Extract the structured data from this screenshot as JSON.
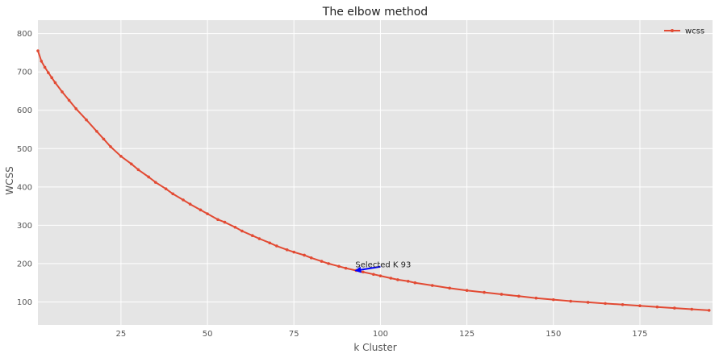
{
  "chart_data": {
    "type": "line",
    "title": "The elbow method",
    "xlabel": "k Cluster",
    "ylabel": "WCSS",
    "xlim": [
      1,
      196
    ],
    "ylim": [
      40,
      835
    ],
    "xticks": [
      25,
      50,
      75,
      100,
      125,
      150,
      175
    ],
    "yticks": [
      100,
      200,
      300,
      400,
      500,
      600,
      700,
      800
    ],
    "grid": true,
    "legend_position": "top-right",
    "series": [
      {
        "name": "wcss",
        "color": "#e24a33",
        "marker": "dot",
        "x": [
          1,
          2,
          3,
          4,
          5,
          6,
          8,
          10,
          12,
          15,
          18,
          20,
          22,
          25,
          28,
          30,
          33,
          35,
          38,
          40,
          43,
          45,
          48,
          50,
          53,
          55,
          58,
          60,
          63,
          65,
          68,
          70,
          73,
          75,
          78,
          80,
          83,
          85,
          88,
          90,
          93,
          95,
          98,
          100,
          103,
          105,
          108,
          110,
          115,
          120,
          125,
          130,
          135,
          140,
          145,
          150,
          155,
          160,
          165,
          170,
          175,
          180,
          185,
          190,
          195
        ],
        "y": [
          755,
          728,
          712,
          698,
          685,
          672,
          648,
          626,
          604,
          575,
          545,
          525,
          505,
          480,
          460,
          445,
          426,
          412,
          395,
          382,
          366,
          355,
          340,
          330,
          315,
          308,
          295,
          285,
          273,
          265,
          254,
          246,
          236,
          230,
          222,
          215,
          206,
          200,
          193,
          188,
          182,
          178,
          172,
          168,
          162,
          158,
          154,
          150,
          143,
          136,
          130,
          125,
          120,
          115,
          110,
          106,
          102,
          99,
          96,
          93,
          90,
          87,
          84,
          81,
          78
        ]
      }
    ],
    "annotations": [
      {
        "text": "Selected K 93",
        "x": 93,
        "y": 182,
        "arrow_from_x": 100,
        "arrow_from_y": 192,
        "color": "#0000ff"
      }
    ]
  }
}
